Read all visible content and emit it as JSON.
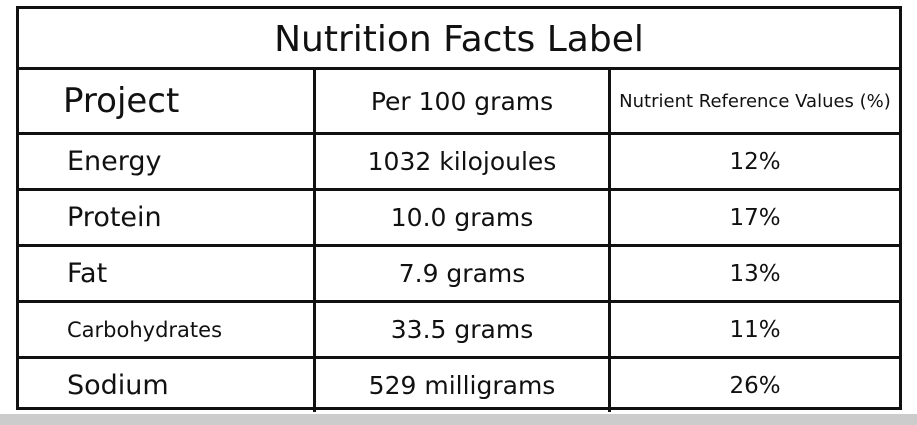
{
  "table": {
    "title": "Nutrition Facts Label",
    "header": [
      "Project",
      "Per 100 grams",
      "Nutrient Reference Values (%)"
    ],
    "rows": [
      [
        "Energy",
        "1032 kilojoules",
        "12%"
      ],
      [
        "Protein",
        "10.0 grams",
        "17%"
      ],
      [
        "Fat",
        "7.9 grams",
        "13%"
      ],
      [
        "Carbohydrates",
        "33.5 grams",
        "11%"
      ],
      [
        "Sodium",
        "529 milligrams",
        "26%"
      ]
    ]
  }
}
